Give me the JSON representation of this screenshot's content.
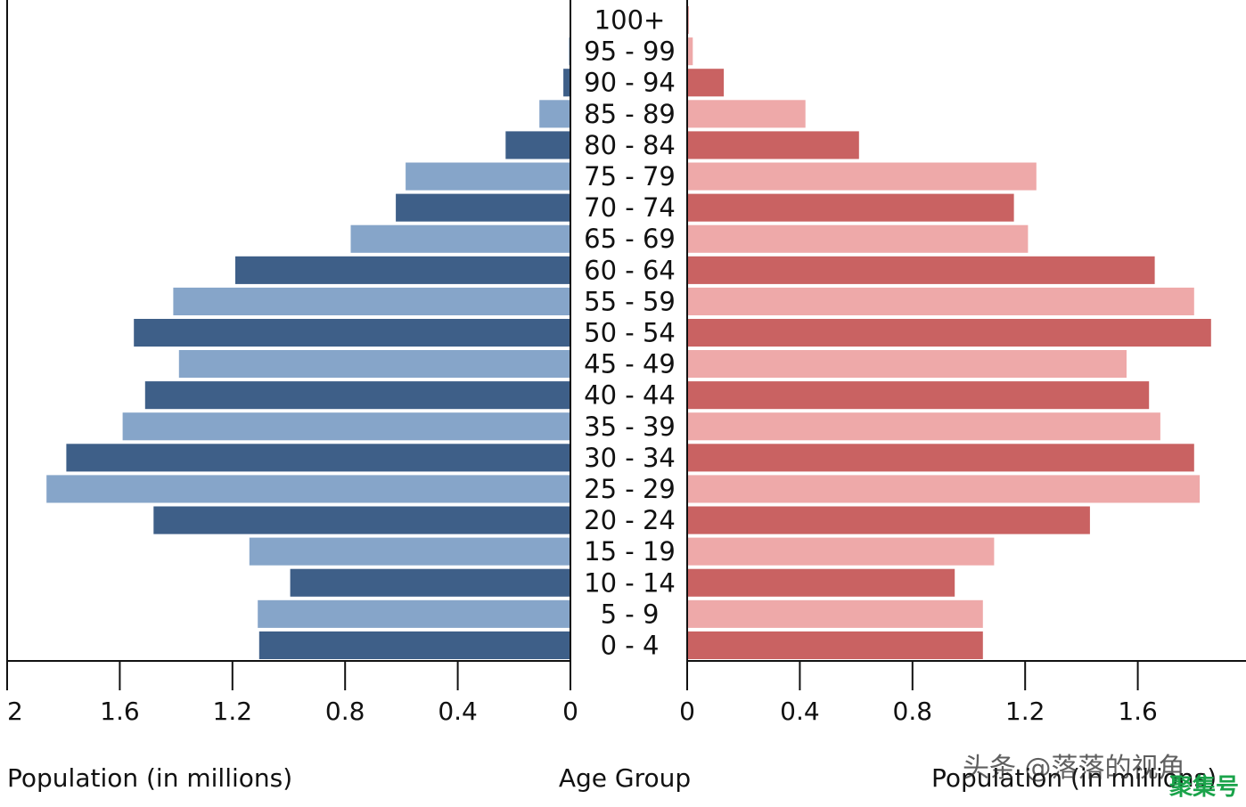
{
  "chart_data": {
    "type": "bar",
    "orientation": "horizontal",
    "layout": "population-pyramid",
    "categories": [
      "100+",
      "95 - 99",
      "90 - 94",
      "85 - 89",
      "80 - 84",
      "75 - 79",
      "70 - 74",
      "65 - 69",
      "60 - 64",
      "55 - 59",
      "50 - 54",
      "45 - 49",
      "40 - 44",
      "35 - 39",
      "30 - 34",
      "25 - 29",
      "20 - 24",
      "15 - 19",
      "10 - 14",
      "5 - 9",
      "0 - 4"
    ],
    "series": [
      {
        "side": "left",
        "colors": [
          "#3e5f88",
          "#86a5c9"
        ],
        "values": [
          0.003,
          0.005,
          0.025,
          0.11,
          0.23,
          0.585,
          0.62,
          0.78,
          1.19,
          1.41,
          1.55,
          1.39,
          1.51,
          1.59,
          1.79,
          1.86,
          1.48,
          1.14,
          0.995,
          1.11,
          1.105
        ]
      },
      {
        "side": "right",
        "colors": [
          "#c96262",
          "#eea9a9"
        ],
        "values": [
          0.005,
          0.02,
          0.13,
          0.42,
          0.61,
          1.24,
          1.16,
          1.21,
          1.66,
          1.8,
          1.86,
          1.56,
          1.64,
          1.68,
          1.8,
          1.82,
          1.43,
          1.09,
          0.95,
          1.05,
          1.05
        ]
      }
    ],
    "left_axis": {
      "range": [
        2.0,
        0
      ],
      "ticks": [
        2,
        1.6,
        1.2,
        0.8,
        0.4,
        0
      ],
      "tick_labels": [
        "2",
        "1.6",
        "1.2",
        "0.8",
        "0.4",
        "0"
      ],
      "xlabel": "Population (in millions)"
    },
    "right_axis": {
      "range": [
        0,
        2.0
      ],
      "ticks": [
        0,
        0.4,
        0.8,
        1.2,
        1.6
      ],
      "tick_labels": [
        "0",
        "0.4",
        "0.8",
        "1.2",
        "1.6"
      ],
      "xlabel": "Population (in millions)"
    },
    "center_label": "Age Group",
    "grid": false,
    "legend": "none"
  },
  "watermark": {
    "text": "头条 @落落的视角",
    "badge": "聚集号"
  }
}
